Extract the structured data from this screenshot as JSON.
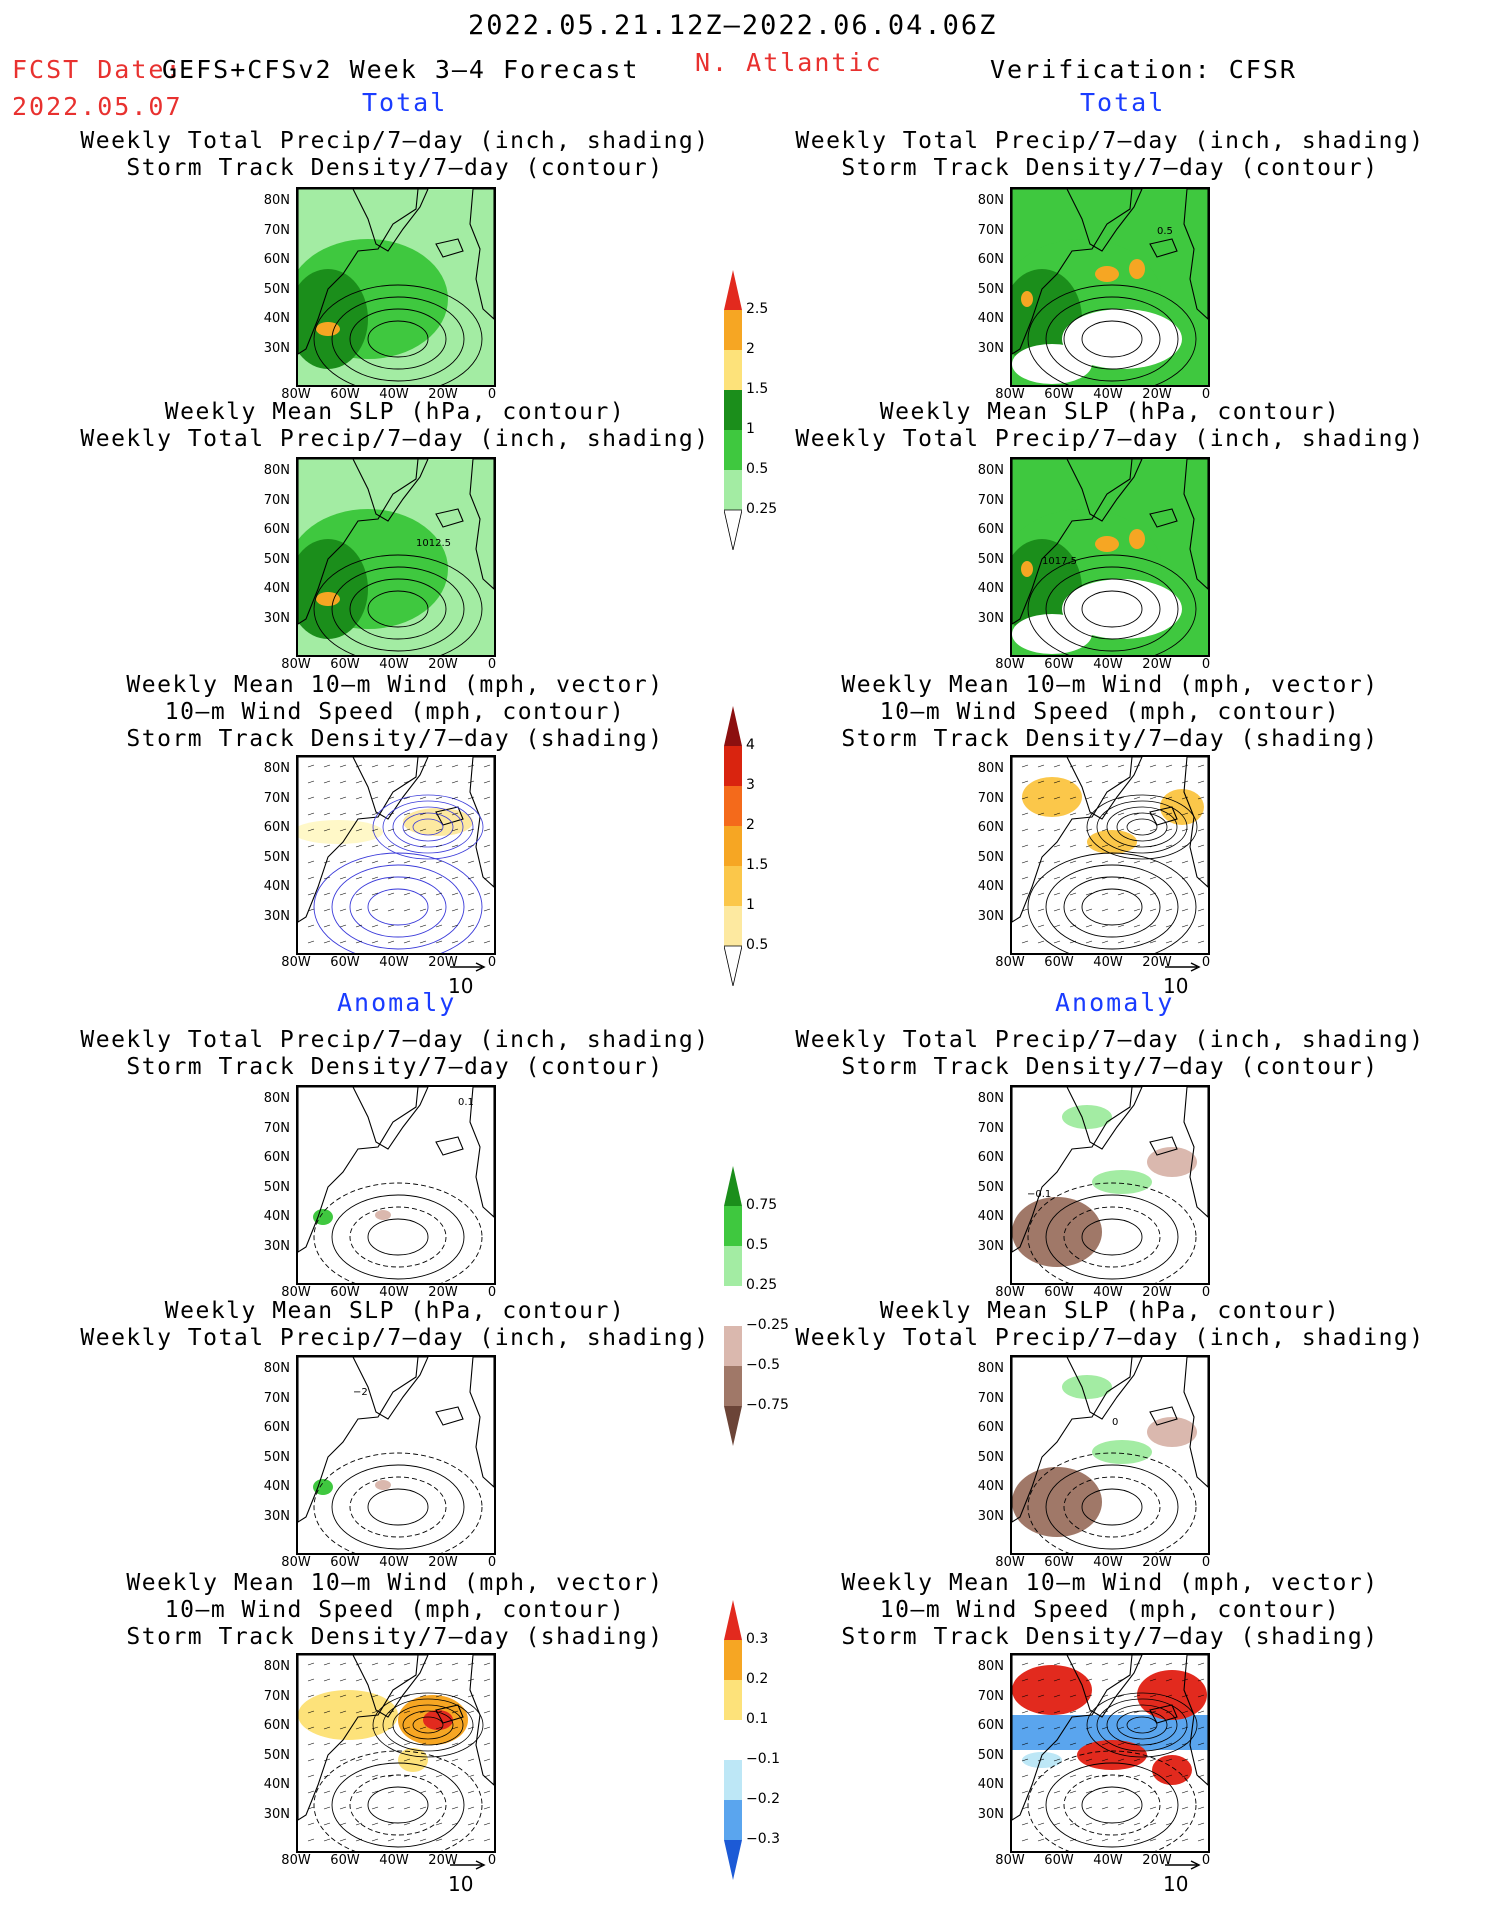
{
  "header": {
    "date_range": "2022.05.21.12Z–2022.06.04.06Z",
    "fcst_prefix": "FCST Date:",
    "fcst_model": "GEFS+CFSv2 Week 3–4 Forecast",
    "fcst_date": "2022.05.07",
    "region": "N. Atlantic",
    "verification": "Verification: CFSR"
  },
  "sections": {
    "total_left": "Total",
    "total_right": "Total",
    "anom_left": "Anomaly",
    "anom_right": "Anomaly"
  },
  "titles": {
    "p1": [
      "Weekly Total Precip/7–day (inch, shading)",
      "Storm Track Density/7–day (contour)"
    ],
    "p2": [
      "Weekly Mean SLP (hPa, contour)",
      "Weekly Total Precip/7–day (inch, shading)"
    ],
    "p3": [
      "Weekly Mean 10–m Wind (mph, vector)",
      "10–m Wind Speed (mph, contour)",
      "Storm Track Density/7–day (shading)"
    ]
  },
  "axes": {
    "lat": [
      "80N",
      "70N",
      "60N",
      "50N",
      "40N",
      "30N"
    ],
    "lon": [
      "80W",
      "60W",
      "40W",
      "20W",
      "0"
    ]
  },
  "contour_labels": {
    "l_slp": "1012.5",
    "r_slp": "1017.5",
    "r_std": "0.5",
    "l_anom_std": "0.1",
    "r_anom_std_a": "−0.1",
    "r_anom_std_b": "−0.1",
    "l_anom_slp": "−2",
    "r_anom_slp": "0"
  },
  "vector_ref": "10",
  "colorbars": {
    "precip": [
      "2.5",
      "2",
      "1.5",
      "1",
      "0.5",
      "0.25"
    ],
    "std": [
      "4",
      "3",
      "2",
      "1.5",
      "1",
      "0.5"
    ],
    "precip_anom": [
      "0.75",
      "0.5",
      "0.25",
      "−0.25",
      "−0.5",
      "−0.75"
    ],
    "std_anom": [
      "0.3",
      "0.2",
      "0.1",
      "−0.1",
      "−0.2",
      "−0.3"
    ]
  },
  "colors": {
    "precip": [
      "#e22a1e",
      "#f6a623",
      "#fde27a",
      "#1b8e1b",
      "#3fc83f",
      "#a3ecA3"
    ],
    "std": [
      "#8c0f0f",
      "#d9240f",
      "#f46a1b",
      "#f6a623",
      "#fbc74a",
      "#fde9a0",
      "#fff8c8"
    ],
    "precip_anom": [
      "#1b8e1b",
      "#3fc83f",
      "#a3eca3",
      "#ffffff",
      "#dab8ae",
      "#a07868",
      "#6b4437"
    ],
    "std_anom": [
      "#e22a1e",
      "#f6a623",
      "#fde27a",
      "#ffffff",
      "#bde7f6",
      "#5aa5ee",
      "#1c5ad6"
    ]
  }
}
